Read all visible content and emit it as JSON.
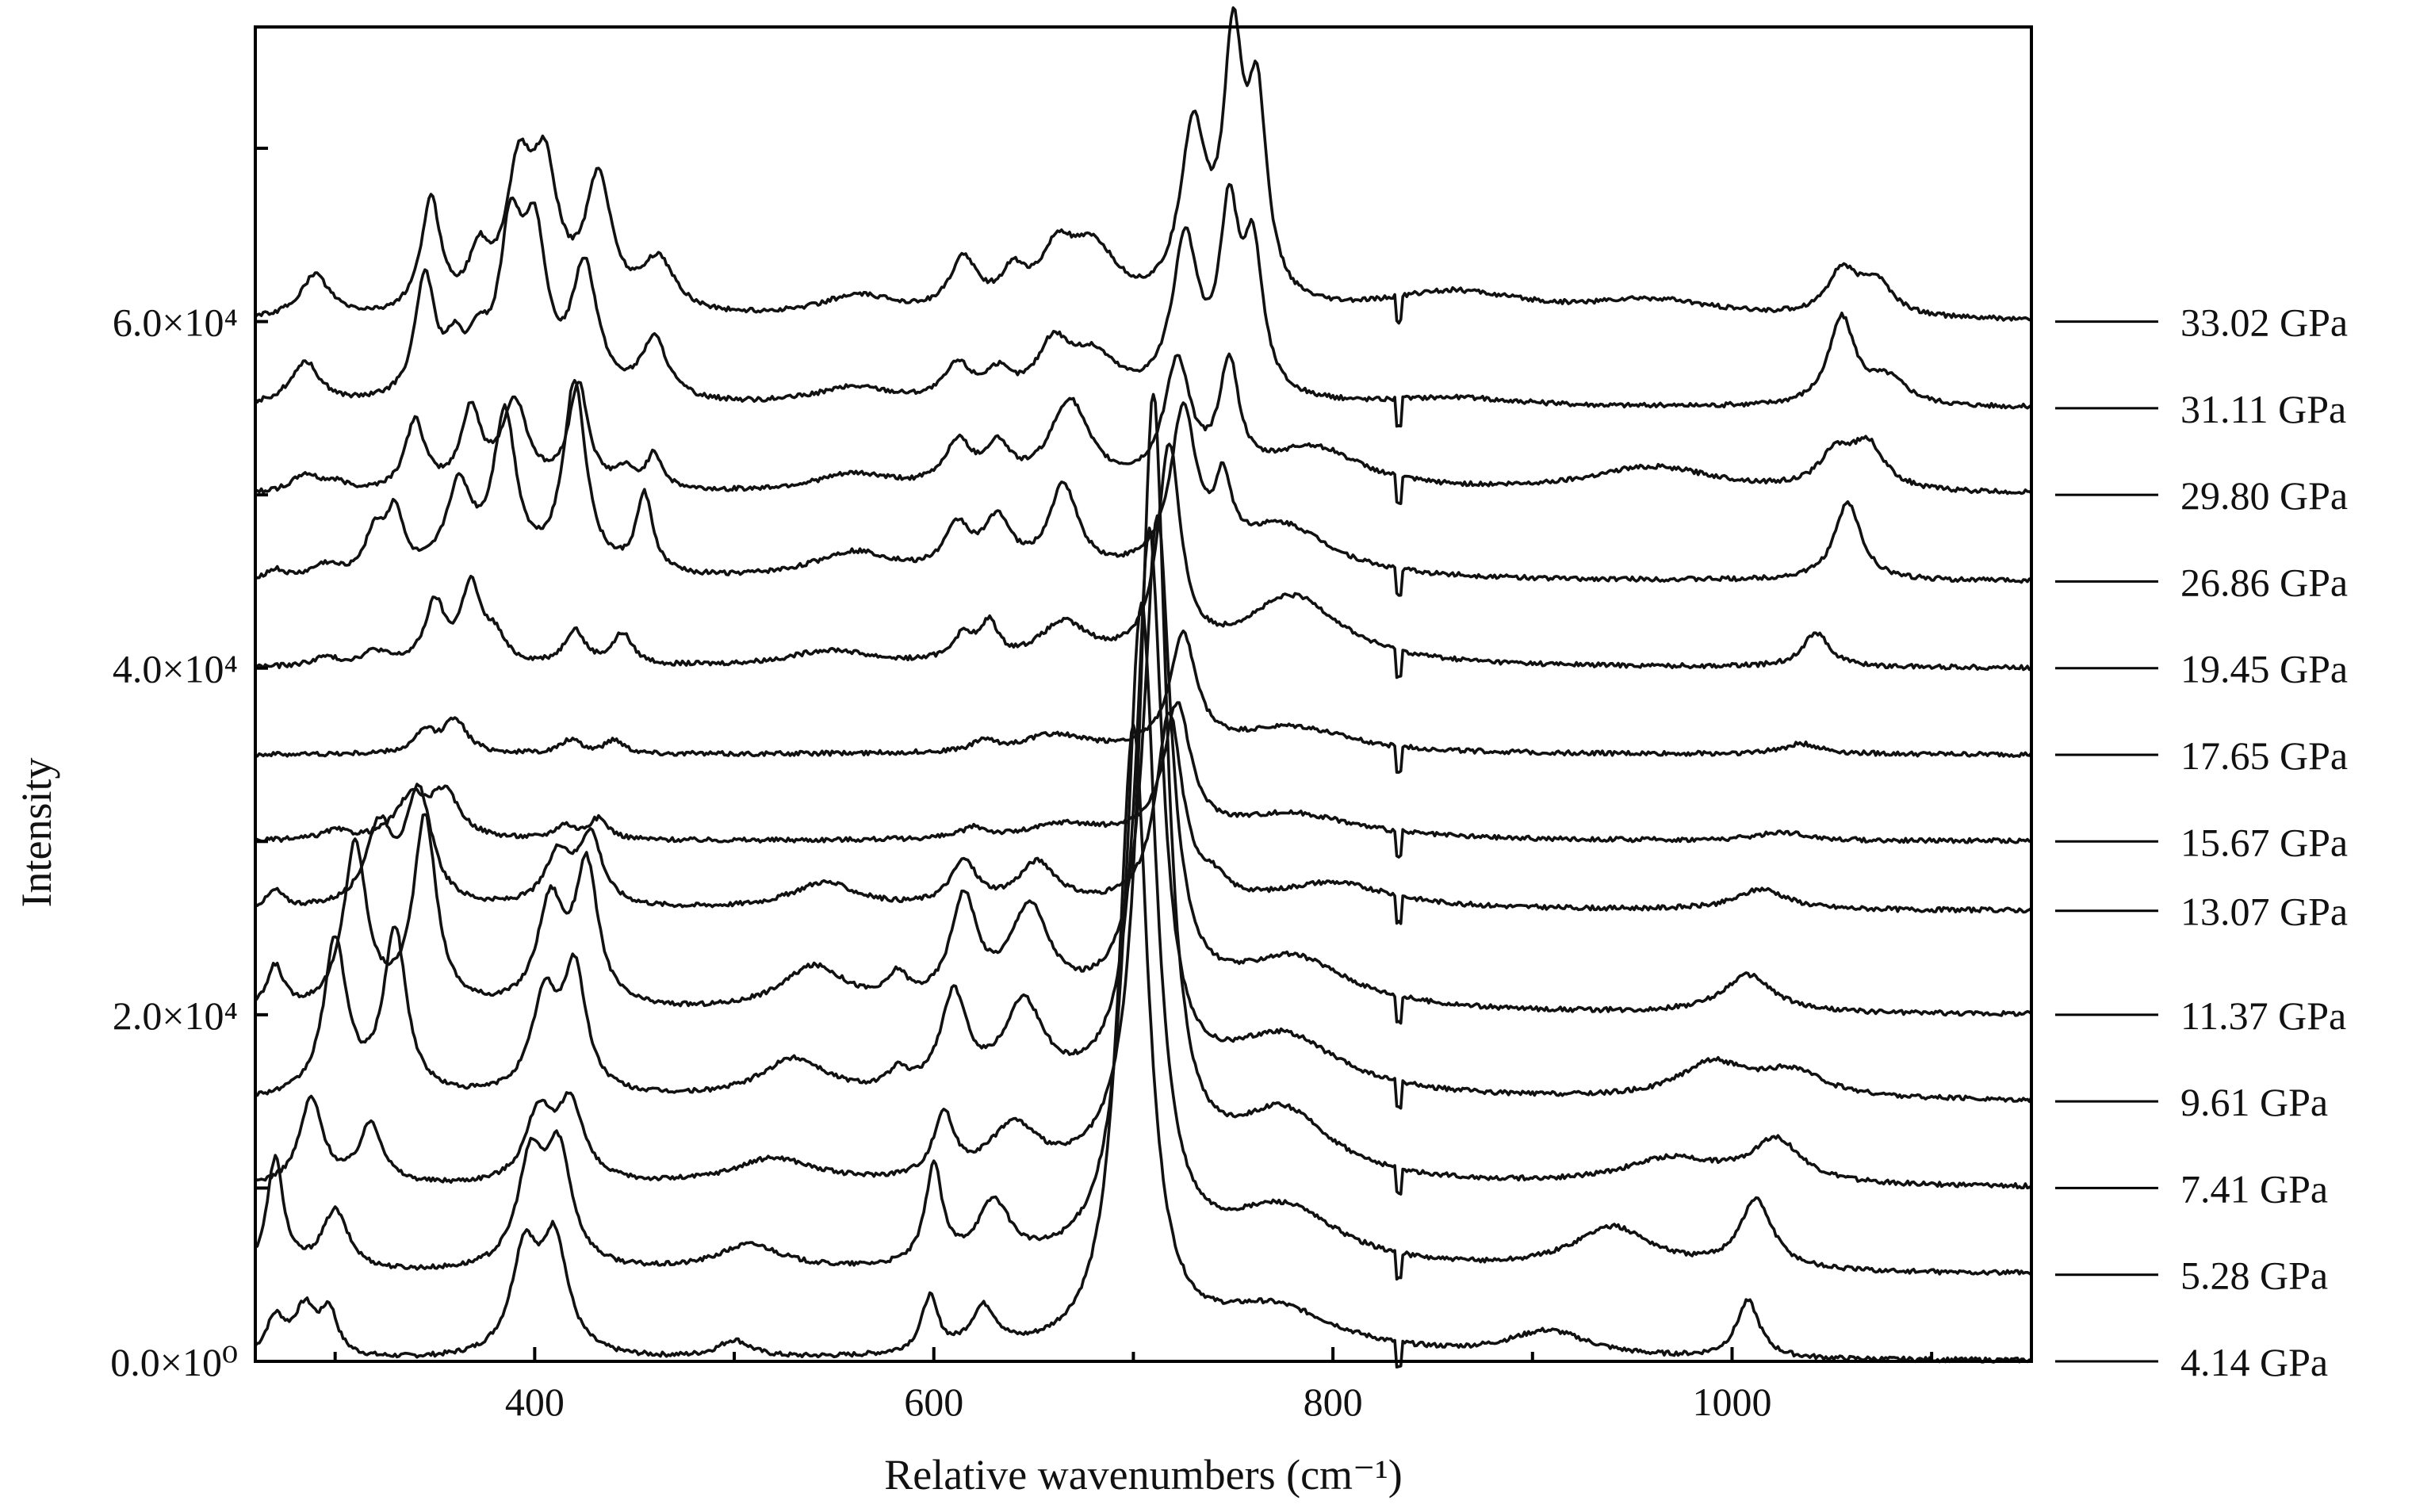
{
  "chart_data": {
    "type": "line",
    "title": "",
    "xlabel": "Relative wavenumbers (cm⁻¹)",
    "ylabel": "Intensity",
    "xlim": [
      260,
      1150
    ],
    "ylim": [
      0,
      77000
    ],
    "x_ticks": [
      {
        "value": 400,
        "label": "400"
      },
      {
        "value": 600,
        "label": "600"
      },
      {
        "value": 800,
        "label": "800"
      },
      {
        "value": 1000,
        "label": "1000"
      }
    ],
    "y_ticks": [
      {
        "value": 0,
        "label": "0.0×10⁰"
      },
      {
        "value": 20000,
        "label": "2.0×10⁴"
      },
      {
        "value": 40000,
        "label": "4.0×10⁴"
      },
      {
        "value": 60000,
        "label": "6.0×10⁴"
      }
    ],
    "grid": false,
    "legend": "right, one pressure label per trace",
    "series": [
      {
        "name": "4.14 GPa",
        "baseline": 0,
        "peaks": [
          [
            270,
            2200,
            6
          ],
          [
            285,
            2800,
            7
          ],
          [
            297,
            2500,
            5
          ],
          [
            395,
            6000,
            8
          ],
          [
            410,
            6500,
            8
          ],
          [
            500,
            1000,
            10
          ],
          [
            598,
            3200,
            5
          ],
          [
            625,
            2500,
            8
          ],
          [
            700,
            36000,
            9
          ],
          [
            770,
            2800,
            40
          ],
          [
            908,
            1500,
            25
          ],
          [
            1008,
            3300,
            7
          ]
        ]
      },
      {
        "name": "5.28 GPa",
        "baseline": 5000,
        "peaks": [
          [
            270,
            6500,
            5
          ],
          [
            300,
            3500,
            8
          ],
          [
            398,
            6000,
            8
          ],
          [
            412,
            6500,
            8
          ],
          [
            508,
            1500,
            20
          ],
          [
            600,
            5700,
            5
          ],
          [
            630,
            3500,
            10
          ],
          [
            704,
            38000,
            9
          ],
          [
            775,
            3500,
            35
          ],
          [
            940,
            2500,
            25
          ],
          [
            1012,
            4000,
            10
          ]
        ]
      },
      {
        "name": "7.41 GPa",
        "baseline": 10000,
        "peaks": [
          [
            288,
            5000,
            7
          ],
          [
            318,
            3500,
            7
          ],
          [
            402,
            4000,
            8
          ],
          [
            418,
            4500,
            8
          ],
          [
            520,
            1500,
            25
          ],
          [
            605,
            3600,
            6
          ],
          [
            640,
            3000,
            15
          ],
          [
            710,
            45000,
            8
          ],
          [
            775,
            4000,
            30
          ],
          [
            970,
            1500,
            30
          ],
          [
            1022,
            2500,
            15
          ]
        ]
      },
      {
        "name": "9.61 GPa",
        "baseline": 15000,
        "peaks": [
          [
            300,
            9000,
            7
          ],
          [
            330,
            9500,
            7
          ],
          [
            405,
            5500,
            8
          ],
          [
            420,
            7000,
            7
          ],
          [
            530,
            2200,
            20
          ],
          [
            582,
            1000,
            6
          ],
          [
            610,
            5500,
            8
          ],
          [
            645,
            5000,
            12
          ],
          [
            708,
            32000,
            8
          ],
          [
            775,
            3500,
            35
          ],
          [
            990,
            2000,
            20
          ],
          [
            1030,
            1500,
            20
          ]
        ]
      },
      {
        "name": "11.37 GPa",
        "baseline": 20000,
        "peaks": [
          [
            270,
            2500,
            5
          ],
          [
            310,
            9500,
            7
          ],
          [
            345,
            11000,
            7
          ],
          [
            408,
            6000,
            8
          ],
          [
            426,
            8000,
            7
          ],
          [
            540,
            2500,
            20
          ],
          [
            582,
            1500,
            6
          ],
          [
            615,
            6000,
            8
          ],
          [
            648,
            5500,
            12
          ],
          [
            712,
            28000,
            8
          ],
          [
            780,
            3000,
            35
          ],
          [
            1008,
            2200,
            15
          ]
        ]
      },
      {
        "name": "13.07 GPa",
        "baseline": 26000,
        "peaks": [
          [
            270,
            1000,
            5
          ],
          [
            322,
            4500,
            8
          ],
          [
            342,
            6500,
            8
          ],
          [
            412,
            3000,
            8
          ],
          [
            428,
            4000,
            7
          ],
          [
            545,
            1500,
            20
          ],
          [
            615,
            2500,
            8
          ],
          [
            652,
            2500,
            12
          ],
          [
            718,
            11000,
            8
          ],
          [
            740,
            1000,
            8
          ],
          [
            800,
            1500,
            35
          ],
          [
            1015,
            1200,
            15
          ]
        ]
      },
      {
        "name": "15.67 GPa",
        "baseline": 30000,
        "peaks": [
          [
            300,
            500,
            8
          ],
          [
            338,
            2300,
            9
          ],
          [
            355,
            2600,
            9
          ],
          [
            415,
            800,
            6
          ],
          [
            432,
            1200,
            6
          ],
          [
            620,
            600,
            8
          ],
          [
            665,
            800,
            20
          ],
          [
            722,
            7500,
            8
          ],
          [
            780,
            1500,
            40
          ],
          [
            1025,
            500,
            15
          ]
        ]
      },
      {
        "name": "17.65 GPa",
        "baseline": 35000,
        "peaks": [
          [
            345,
            1200,
            6
          ],
          [
            360,
            2000,
            7
          ],
          [
            418,
            800,
            6
          ],
          [
            440,
            800,
            6
          ],
          [
            625,
            600,
            6
          ],
          [
            660,
            1000,
            20
          ],
          [
            725,
            6500,
            8
          ],
          [
            780,
            1500,
            35
          ],
          [
            1035,
            600,
            12
          ]
        ]
      },
      {
        "name": "19.45 GPa",
        "baseline": 40000,
        "peaks": [
          [
            295,
            500,
            8
          ],
          [
            320,
            800,
            8
          ],
          [
            350,
            3500,
            6
          ],
          [
            368,
            4500,
            6
          ],
          [
            380,
            1500,
            6
          ],
          [
            420,
            2000,
            6
          ],
          [
            444,
            1800,
            6
          ],
          [
            548,
            900,
            25
          ],
          [
            615,
            1500,
            7
          ],
          [
            628,
            2000,
            5
          ],
          [
            665,
            2200,
            15
          ],
          [
            718,
            12000,
            7
          ],
          [
            780,
            4000,
            30
          ],
          [
            1042,
            2000,
            8
          ]
        ]
      },
      {
        "name": "26.86 GPa",
        "baseline": 45000,
        "peaks": [
          [
            270,
            500,
            5
          ],
          [
            295,
            700,
            8
          ],
          [
            320,
            2500,
            6
          ],
          [
            330,
            3500,
            5
          ],
          [
            362,
            5000,
            8
          ],
          [
            385,
            9000,
            7
          ],
          [
            420,
            11000,
            7
          ],
          [
            455,
            4500,
            5
          ],
          [
            560,
            1500,
            25
          ],
          [
            612,
            2600,
            8
          ],
          [
            632,
            3000,
            8
          ],
          [
            665,
            5000,
            9
          ],
          [
            725,
            9000,
            8
          ],
          [
            745,
            4000,
            5
          ],
          [
            775,
            3000,
            30
          ],
          [
            1058,
            4500,
            8
          ]
        ]
      },
      {
        "name": "29.80 GPa",
        "baseline": 50000,
        "peaks": [
          [
            285,
            1000,
            8
          ],
          [
            300,
            500,
            8
          ],
          [
            340,
            4000,
            6
          ],
          [
            368,
            4500,
            6
          ],
          [
            390,
            5000,
            8
          ],
          [
            422,
            6000,
            6
          ],
          [
            445,
            1000,
            6
          ],
          [
            460,
            2000,
            5
          ],
          [
            560,
            1000,
            25
          ],
          [
            612,
            2500,
            8
          ],
          [
            632,
            2200,
            8
          ],
          [
            668,
            5000,
            12
          ],
          [
            722,
            7000,
            8
          ],
          [
            748,
            6500,
            6
          ],
          [
            790,
            2500,
            30
          ],
          [
            960,
            1500,
            40
          ],
          [
            1052,
            2000,
            10
          ],
          [
            1068,
            2500,
            10
          ]
        ]
      },
      {
        "name": "31.11 GPa",
        "baseline": 55000,
        "peaks": [
          [
            285,
            2500,
            9
          ],
          [
            345,
            7000,
            6
          ],
          [
            360,
            2500,
            6
          ],
          [
            372,
            2500,
            6
          ],
          [
            388,
            9000,
            7
          ],
          [
            400,
            8500,
            7
          ],
          [
            425,
            7500,
            8
          ],
          [
            460,
            3500,
            8
          ],
          [
            560,
            1000,
            25
          ],
          [
            612,
            2000,
            8
          ],
          [
            632,
            1500,
            8
          ],
          [
            660,
            3000,
            10
          ],
          [
            680,
            2500,
            15
          ],
          [
            726,
            9000,
            8
          ],
          [
            748,
            10000,
            6
          ],
          [
            760,
            8000,
            6
          ],
          [
            860,
            500,
            40
          ],
          [
            1055,
            5000,
            8
          ],
          [
            1078,
            1500,
            12
          ]
        ]
      },
      {
        "name": "33.02 GPa",
        "baseline": 60000,
        "peaks": [
          [
            290,
            2500,
            9
          ],
          [
            348,
            6500,
            6
          ],
          [
            372,
            3000,
            6
          ],
          [
            392,
            7500,
            8
          ],
          [
            405,
            7500,
            8
          ],
          [
            432,
            7500,
            8
          ],
          [
            462,
            3000,
            10
          ],
          [
            562,
            1200,
            25
          ],
          [
            615,
            3000,
            8
          ],
          [
            640,
            2000,
            8
          ],
          [
            662,
            3000,
            10
          ],
          [
            680,
            3500,
            15
          ],
          [
            730,
            10000,
            8
          ],
          [
            750,
            14000,
            6
          ],
          [
            762,
            11000,
            6
          ],
          [
            860,
            1500,
            45
          ],
          [
            960,
            1000,
            40
          ],
          [
            1055,
            2500,
            9
          ],
          [
            1072,
            2000,
            10
          ]
        ]
      }
    ]
  }
}
